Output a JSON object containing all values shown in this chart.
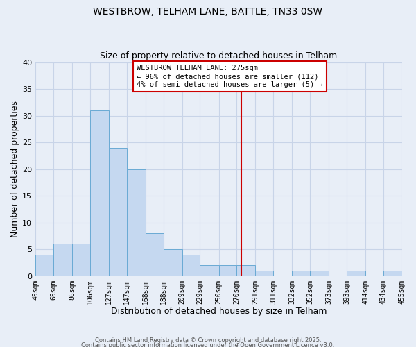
{
  "title": "WESTBROW, TELHAM LANE, BATTLE, TN33 0SW",
  "subtitle": "Size of property relative to detached houses in Telham",
  "xlabel": "Distribution of detached houses by size in Telham",
  "ylabel": "Number of detached properties",
  "bin_edges": [
    45,
    65,
    86,
    106,
    127,
    147,
    168,
    188,
    209,
    229,
    250,
    270,
    291,
    311,
    332,
    352,
    373,
    393,
    414,
    434,
    455
  ],
  "bar_heights": [
    4,
    6,
    6,
    31,
    24,
    20,
    8,
    5,
    4,
    2,
    2,
    2,
    1,
    0,
    1,
    1,
    0,
    1,
    0,
    1
  ],
  "bar_color": "#c5d8f0",
  "bar_edge_color": "#6aaad4",
  "vline_x": 275,
  "vline_color": "#cc0000",
  "ylim": [
    0,
    40
  ],
  "annotation_title": "WESTBROW TELHAM LANE: 275sqm",
  "annotation_line1": "← 96% of detached houses are smaller (112)",
  "annotation_line2": "4% of semi-detached houses are larger (5) →",
  "annotation_box_color": "#ffffff",
  "annotation_box_edge": "#cc0000",
  "footnote1": "Contains HM Land Registry data © Crown copyright and database right 2025.",
  "footnote2": "Contains public sector information licensed under the Open Government Licence v3.0.",
  "background_color": "#e8eef7",
  "grid_color": "#c8d4e8",
  "tick_labels": [
    "45sqm",
    "65sqm",
    "86sqm",
    "106sqm",
    "127sqm",
    "147sqm",
    "168sqm",
    "188sqm",
    "209sqm",
    "229sqm",
    "250sqm",
    "270sqm",
    "291sqm",
    "311sqm",
    "332sqm",
    "352sqm",
    "373sqm",
    "393sqm",
    "414sqm",
    "434sqm",
    "455sqm"
  ]
}
